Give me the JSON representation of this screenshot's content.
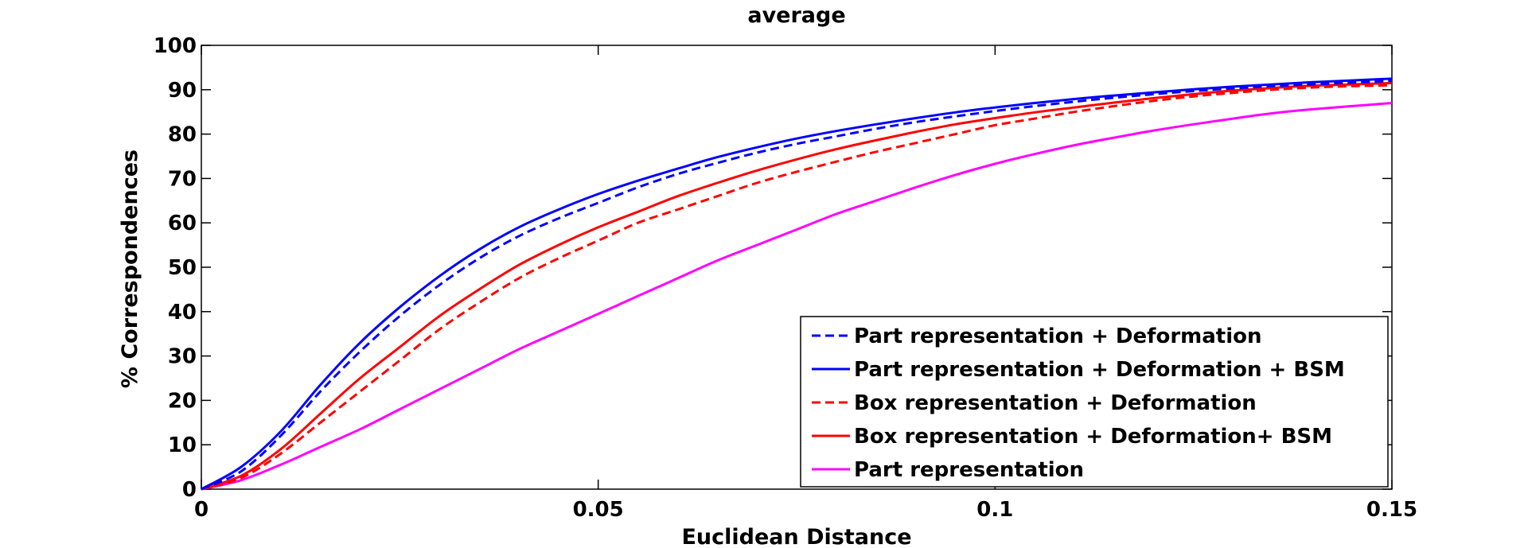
{
  "chart_data": {
    "type": "line",
    "title": "average",
    "xlabel": "Euclidean Distance",
    "ylabel": "% Correspondences",
    "xlim": [
      0,
      0.15
    ],
    "ylim": [
      0,
      100
    ],
    "xticks": [
      0,
      0.05,
      0.1,
      0.15
    ],
    "xtick_labels": [
      "0",
      "0.05",
      "0.1",
      "0.15"
    ],
    "yticks": [
      0,
      10,
      20,
      30,
      40,
      50,
      60,
      70,
      80,
      90,
      100
    ],
    "ytick_labels": [
      "0",
      "10",
      "20",
      "30",
      "40",
      "50",
      "60",
      "70",
      "80",
      "90",
      "100"
    ],
    "grid": false,
    "legend_position": "bottom-right",
    "x": [
      0,
      0.005,
      0.01,
      0.015,
      0.02,
      0.025,
      0.03,
      0.035,
      0.04,
      0.045,
      0.05,
      0.055,
      0.06,
      0.065,
      0.07,
      0.075,
      0.08,
      0.085,
      0.09,
      0.095,
      0.1,
      0.105,
      0.11,
      0.115,
      0.12,
      0.125,
      0.13,
      0.135,
      0.14,
      0.145,
      0.15
    ],
    "series": [
      {
        "name": "Part representation + Deformation",
        "color": "#0000ff",
        "dash": "dashed",
        "values": [
          0,
          4,
          12,
          22,
          31,
          39,
          46,
          52,
          57,
          61,
          64.5,
          68,
          71,
          73.5,
          75.8,
          77.8,
          79.5,
          81.2,
          82.7,
          84,
          85.2,
          86.3,
          87.3,
          88.2,
          89,
          89.7,
          90.3,
          90.8,
          91.2,
          91.6,
          92
        ]
      },
      {
        "name": "Part representation + Deformation + BSM",
        "color": "#0000ff",
        "dash": "solid",
        "values": [
          0,
          5,
          13,
          23.5,
          33,
          41,
          48,
          54,
          59,
          63,
          66.5,
          69.5,
          72.2,
          74.8,
          77,
          79,
          80.7,
          82.2,
          83.6,
          84.9,
          86,
          87,
          87.9,
          88.7,
          89.4,
          90.1,
          90.7,
          91.2,
          91.7,
          92.1,
          92.5
        ]
      },
      {
        "name": "Box representation + Deformation",
        "color": "#ff0000",
        "dash": "dashed",
        "values": [
          0,
          2.5,
          8,
          15,
          22,
          29,
          36,
          42,
          47.5,
          52,
          56,
          60,
          63,
          66,
          69,
          71.5,
          73.8,
          76,
          78,
          80,
          82,
          83.5,
          85,
          86.3,
          87.5,
          88.5,
          89.3,
          90,
          90.5,
          90.8,
          91
        ]
      },
      {
        "name": "Box representation + Deformation+ BSM",
        "color": "#ff0000",
        "dash": "solid",
        "values": [
          0,
          3,
          9,
          17,
          25,
          32,
          39,
          45,
          50.5,
          55,
          59,
          62.5,
          66,
          69,
          71.8,
          74.3,
          76.6,
          78.6,
          80.5,
          82.2,
          83.6,
          84.9,
          86,
          87.1,
          88.1,
          89,
          89.8,
          90.4,
          90.9,
          91.2,
          91.5
        ]
      },
      {
        "name": "Part representation",
        "color": "#ff00ff",
        "dash": "solid",
        "values": [
          0,
          2,
          5.5,
          9.5,
          13.5,
          18,
          22.5,
          27,
          31.5,
          35.5,
          39.5,
          43.5,
          47.5,
          51.5,
          55,
          58.5,
          62,
          65,
          68,
          70.8,
          73.3,
          75.5,
          77.5,
          79.2,
          80.8,
          82.2,
          83.5,
          84.7,
          85.6,
          86.3,
          87
        ]
      }
    ]
  }
}
